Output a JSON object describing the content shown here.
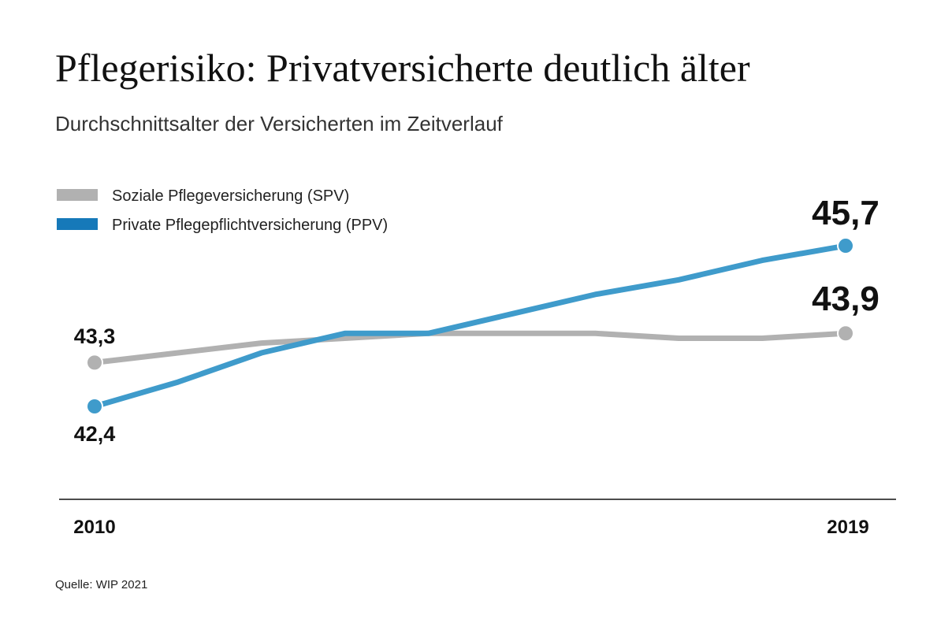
{
  "chart_data": {
    "type": "line",
    "title": "Pflegerisiko: Privatversicherte deutlich älter",
    "subtitle": "Durchschnittsalter der Versicherten im Zeitverlauf",
    "x": [
      2010,
      2011,
      2012,
      2013,
      2014,
      2015,
      2016,
      2017,
      2018,
      2019
    ],
    "x_tick_labels": [
      "2010",
      "2019"
    ],
    "ylim": [
      40.5,
      46.5
    ],
    "grid": false,
    "legend_position": "top-left",
    "series": [
      {
        "name": "Soziale Pflegeversicherung (SPV)",
        "color": "#b1b1b1",
        "values": [
          43.3,
          43.5,
          43.7,
          43.8,
          43.9,
          43.9,
          43.9,
          43.8,
          43.8,
          43.9
        ],
        "start_label": "43,3",
        "end_label": "43,9"
      },
      {
        "name": "Private Pflegepflichtversicherung (PPV)",
        "color": "#3f9bcb",
        "legend_color": "#1679b9",
        "values": [
          42.4,
          42.9,
          43.5,
          43.9,
          43.9,
          44.3,
          44.7,
          45.0,
          45.4,
          45.7
        ],
        "start_label": "42,4",
        "end_label": "45,7"
      }
    ],
    "source": "Quelle: WIP 2021"
  }
}
